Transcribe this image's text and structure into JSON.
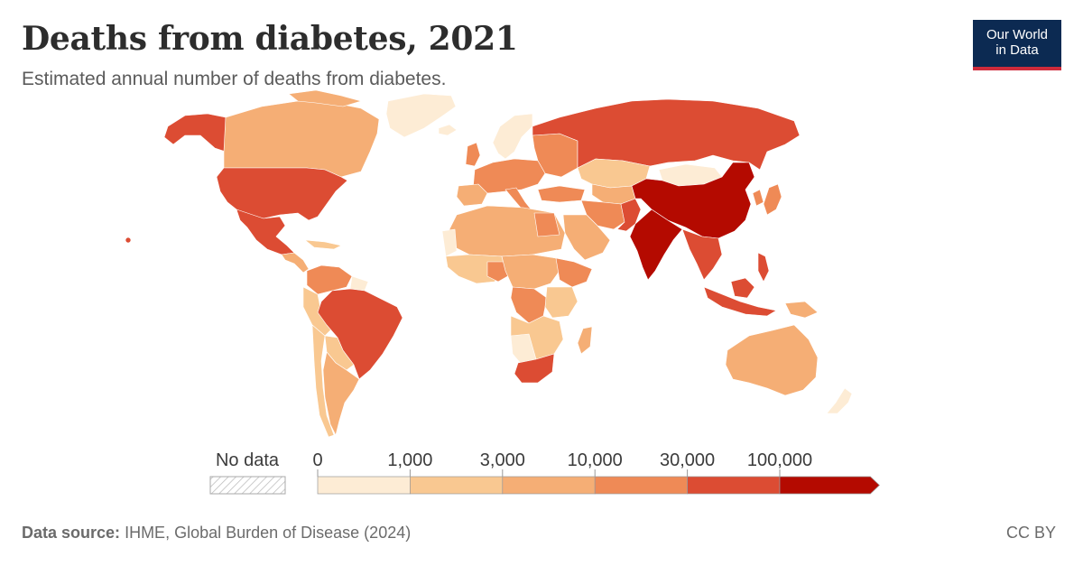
{
  "title": "Deaths from diabetes, 2021",
  "subtitle": "Estimated annual number of deaths from diabetes.",
  "logo": {
    "line1": "Our World",
    "line2": "in Data"
  },
  "legend": {
    "no_data_label": "No data",
    "ticks": [
      "0",
      "1,000",
      "3,000",
      "10,000",
      "30,000",
      "100,000"
    ],
    "bins": [
      {
        "range": "0–1,000",
        "color": "#fdecd5"
      },
      {
        "range": "1,000–3,000",
        "color": "#f9c891"
      },
      {
        "range": "3,000–10,000",
        "color": "#f5ae75"
      },
      {
        "range": "10,000–30,000",
        "color": "#ef8a56"
      },
      {
        "range": "30,000–100,000",
        "color": "#dc4c33"
      },
      {
        "range": "100,000+",
        "color": "#b40a00"
      }
    ]
  },
  "footer": {
    "source_label": "Data source:",
    "source_text": "IHME, Global Burden of Disease (2024)",
    "license": "CC BY"
  }
}
